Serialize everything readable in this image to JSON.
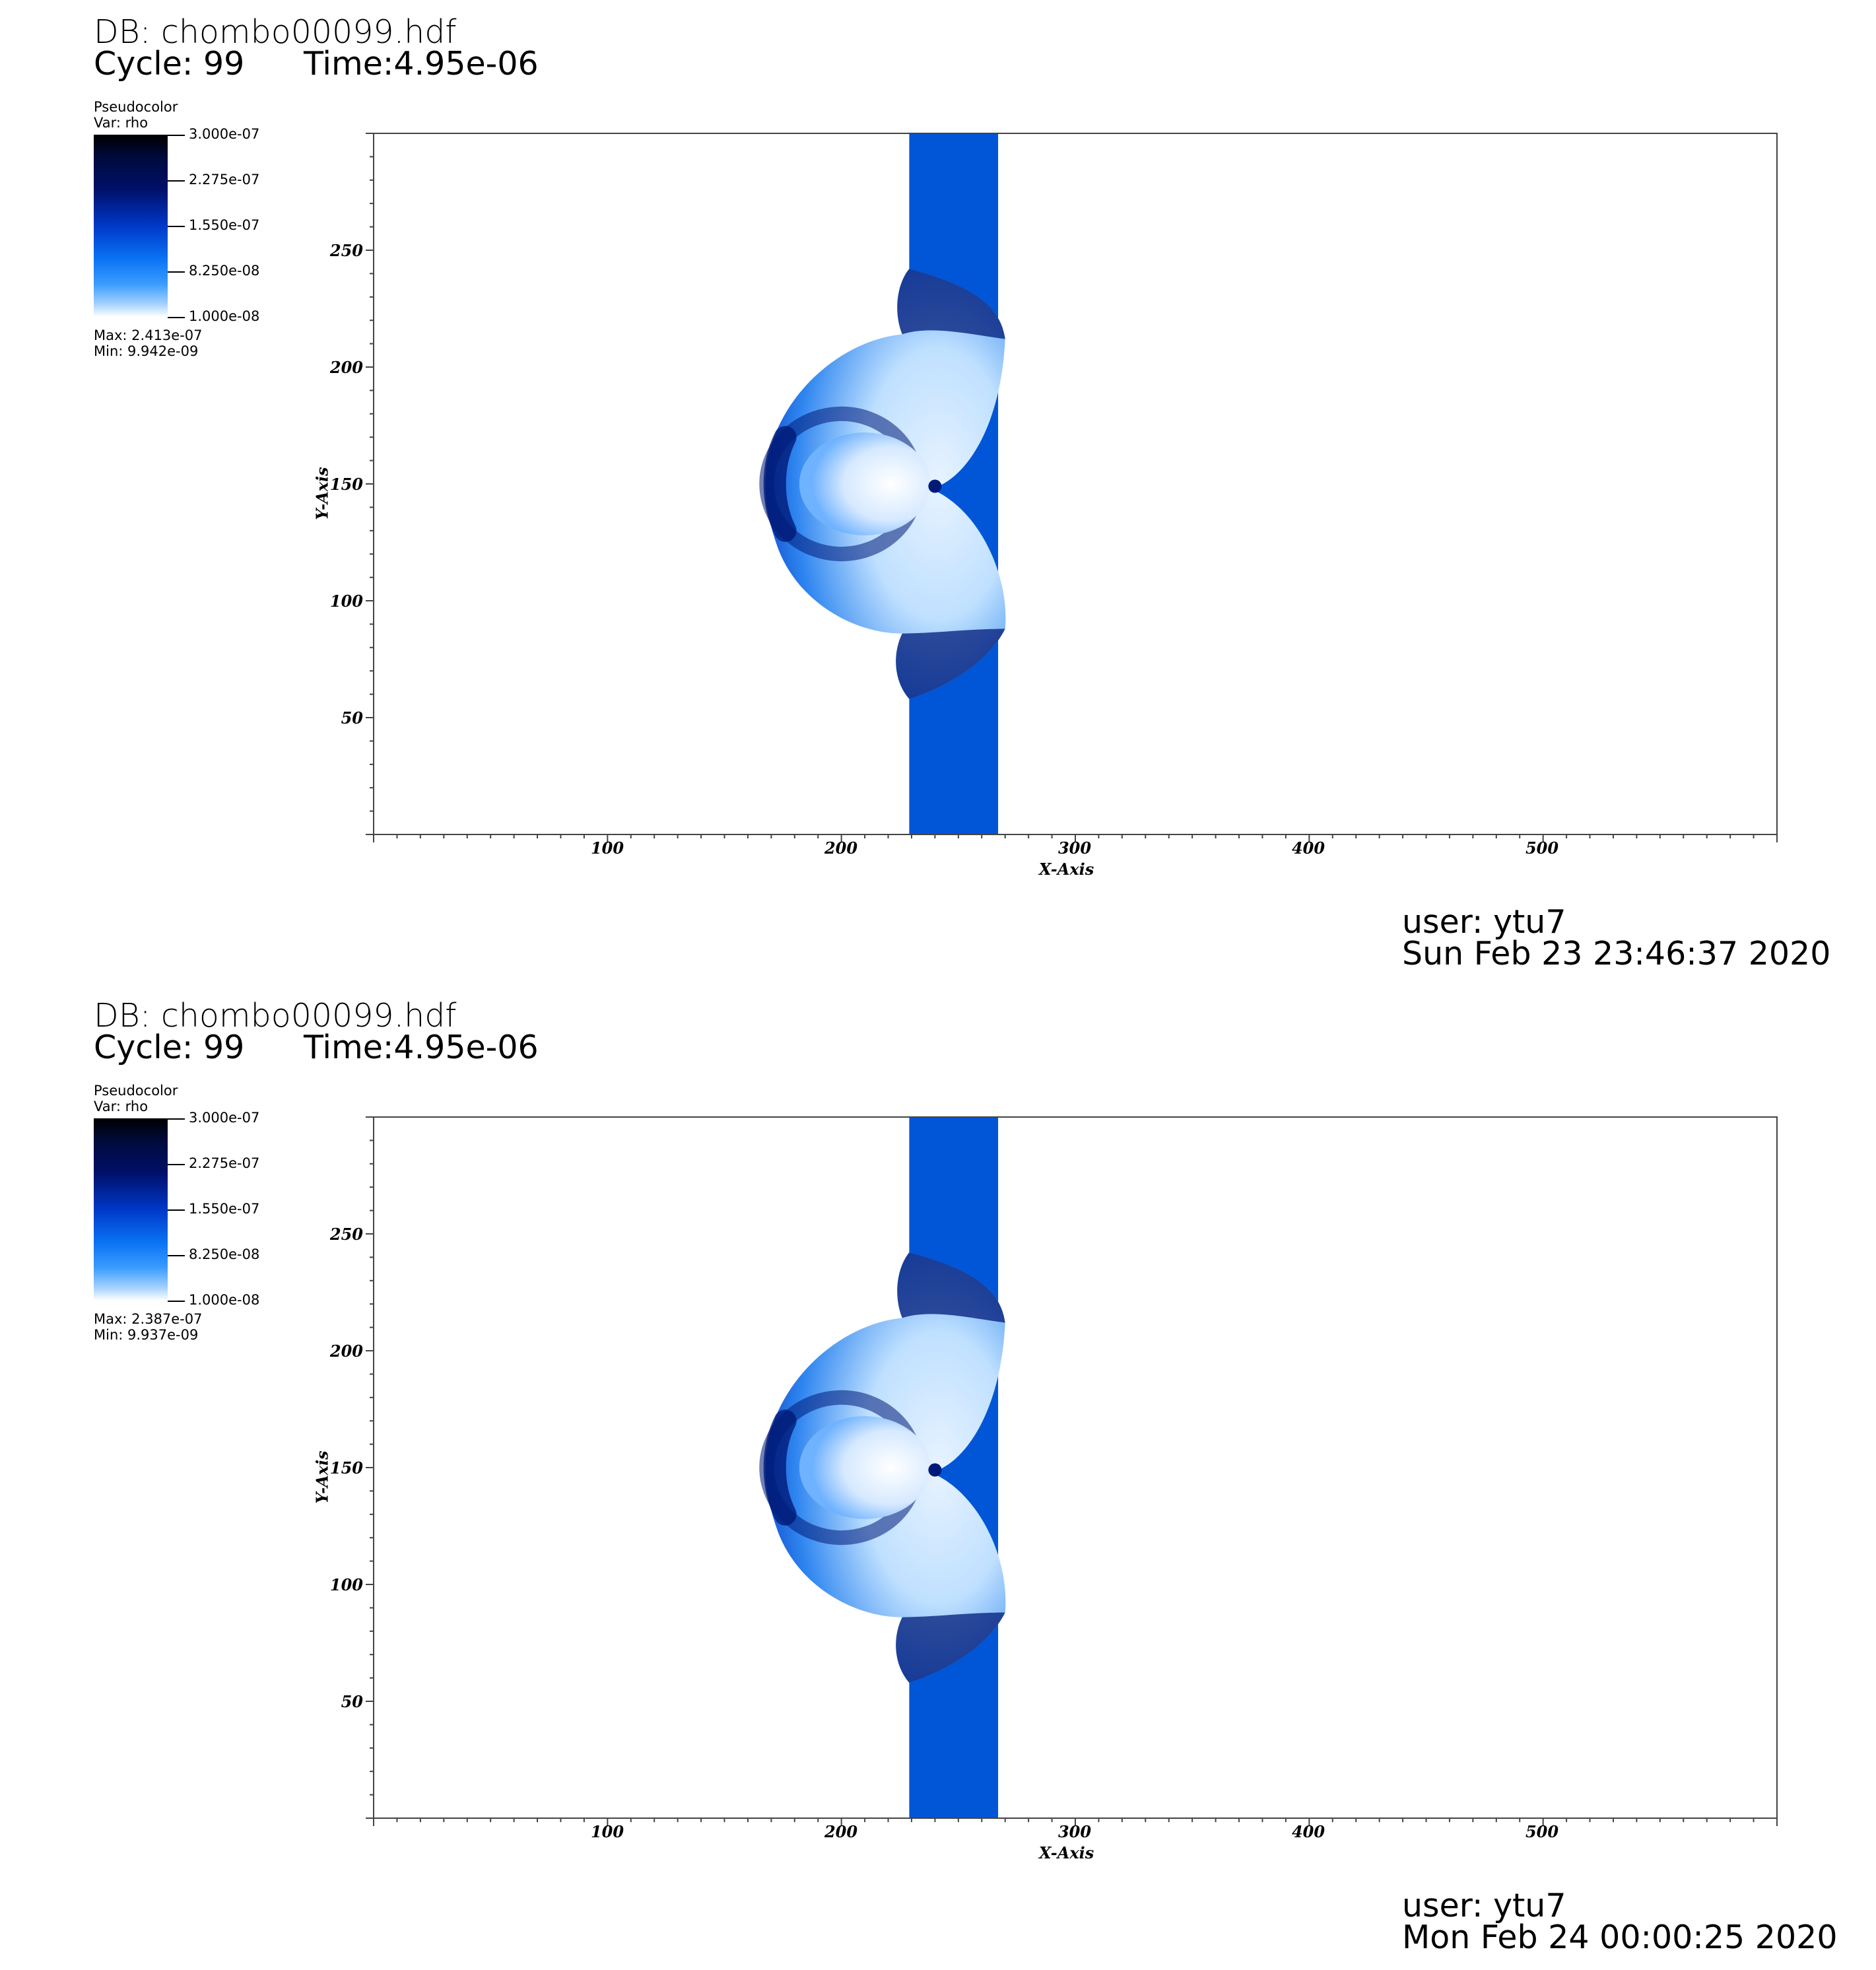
{
  "panels": [
    {
      "db": "DB: chombo00099.hdf",
      "cycle": "Cycle: 99",
      "time": "Time:4.95e-06",
      "legend": {
        "plot_type": "Pseudocolor",
        "var": "Var: rho",
        "ticks": [
          "3.000e-07",
          "2.275e-07",
          "1.550e-07",
          "8.250e-08",
          "1.000e-08"
        ],
        "max": "Max:  2.413e-07",
        "min": "Min:  9.942e-09"
      },
      "user": "user: ytu7",
      "date": "Sun Feb 23 23:46:37 2020"
    },
    {
      "db": "DB: chombo00099.hdf",
      "cycle": "Cycle: 99",
      "time": "Time:4.95e-06",
      "legend": {
        "plot_type": "Pseudocolor",
        "var": "Var: rho",
        "ticks": [
          "3.000e-07",
          "2.275e-07",
          "1.550e-07",
          "8.250e-08",
          "1.000e-08"
        ],
        "max": "Max:  2.387e-07",
        "min": "Min:  9.937e-09"
      },
      "user": "user: ytu7",
      "date": "Mon Feb 24 00:00:25 2020"
    }
  ],
  "chart_data": [
    {
      "type": "heatmap",
      "xlabel": "X-Axis",
      "ylabel": "Y-Axis",
      "xlim": [
        0,
        600
      ],
      "ylim": [
        0,
        300
      ],
      "x_ticks": [
        "100",
        "200",
        "300",
        "400",
        "500"
      ],
      "y_ticks": [
        "50",
        "100",
        "150",
        "200",
        "250"
      ],
      "colorbar_range": [
        1e-08,
        3e-07
      ],
      "colors": {
        "slab": "#0056d6",
        "light": "#bfe0ff",
        "dark": "#001a78"
      }
    },
    {
      "type": "heatmap",
      "xlabel": "X-Axis",
      "ylabel": "Y-Axis",
      "xlim": [
        0,
        600
      ],
      "ylim": [
        0,
        300
      ],
      "x_ticks": [
        "100",
        "200",
        "300",
        "400",
        "500"
      ],
      "y_ticks": [
        "50",
        "100",
        "150",
        "200",
        "250"
      ],
      "colorbar_range": [
        1e-08,
        3e-07
      ],
      "colors": {
        "slab": "#0056d6",
        "light": "#bfe0ff",
        "dark": "#001a78"
      }
    }
  ]
}
